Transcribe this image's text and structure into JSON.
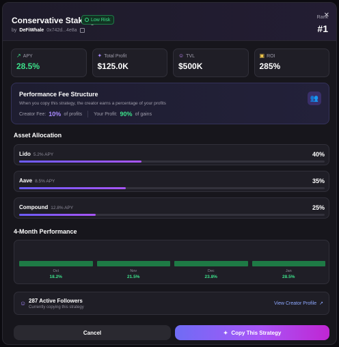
{
  "header": {
    "title": "Conservative Staking",
    "risk_badge": "Low Risk",
    "by_label": "by",
    "author": "DeFiWhale",
    "address": "0x742d...4e8a",
    "rank_label": "Rank",
    "rank_value": "#1"
  },
  "stats": [
    {
      "label": "APY",
      "value": "28.5%",
      "icon": "trend-up-icon"
    },
    {
      "label": "Total Profit",
      "value": "$125.0K",
      "icon": "sparkle-icon"
    },
    {
      "label": "TVL",
      "value": "$500K",
      "icon": "users-icon"
    },
    {
      "label": "ROI",
      "value": "285%",
      "icon": "calendar-icon"
    }
  ],
  "fee": {
    "title": "Performance Fee Structure",
    "description": "When you copy this strategy, the creator earns a percentage of your profits",
    "creator_label": "Creator Fee:",
    "creator_value": "10%",
    "creator_suffix": "of profits",
    "your_label": "Your Profit:",
    "your_value": "90%",
    "your_suffix": "of gains"
  },
  "allocation": {
    "title": "Asset Allocation",
    "items": [
      {
        "name": "Lido",
        "apy": "5.2% APY",
        "percent_label": "40%",
        "percent": 40
      },
      {
        "name": "Aave",
        "apy": "8.5% APY",
        "percent_label": "35%",
        "percent": 35
      },
      {
        "name": "Compound",
        "apy": "12.8% APY",
        "percent_label": "25%",
        "percent": 25
      }
    ]
  },
  "performance": {
    "title": "4-Month Performance",
    "months": [
      {
        "label": "Oct",
        "value": "18.2%"
      },
      {
        "label": "Nov",
        "value": "21.5%"
      },
      {
        "label": "Dec",
        "value": "23.8%"
      },
      {
        "label": "Jan",
        "value": "28.5%"
      }
    ]
  },
  "followers": {
    "count_text": "287 Active Followers",
    "subtitle": "Currently copying this strategy",
    "link": "View Creator Profile"
  },
  "actions": {
    "cancel": "Cancel",
    "copy": "Copy This Strategy"
  },
  "colors": {
    "accent_green": "#3ce08a",
    "accent_purple": "#a855f7",
    "link_blue": "#8ea8ff"
  }
}
